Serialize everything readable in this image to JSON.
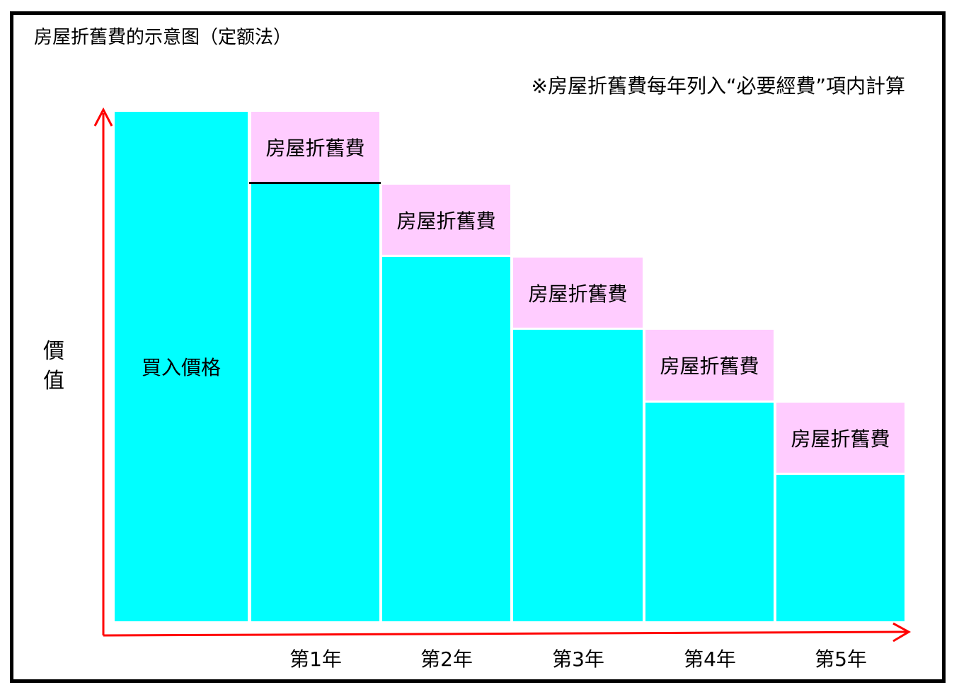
{
  "title": "房屋折舊費的示意图（定额法）",
  "note": "※房屋折舊費每年列入“必要經費”項内計算",
  "y_axis_label": "價值",
  "purchase_label": "買入價格",
  "depreciation_label": "房屋折舊費",
  "years": [
    {
      "label": "第1年"
    },
    {
      "label": "第2年"
    },
    {
      "label": "第3年"
    },
    {
      "label": "第4年"
    },
    {
      "label": "第5年"
    }
  ],
  "colors": {
    "value_block": "#00ffff",
    "depreciation_block": "#ffccff",
    "axis": "#ff0000",
    "frame": "#000000"
  }
}
